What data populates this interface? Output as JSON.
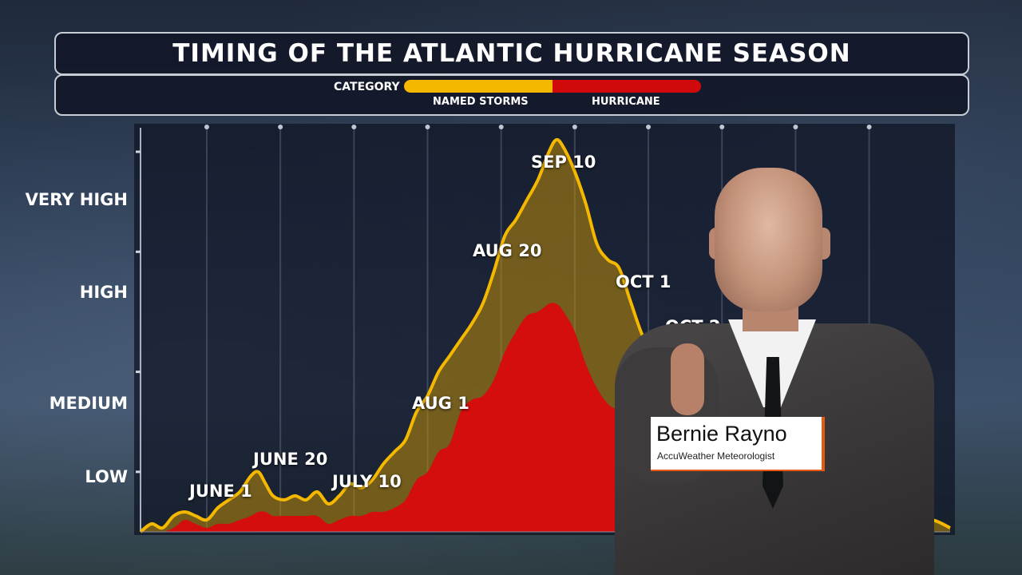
{
  "header": {
    "title": "TIMING OF THE ATLANTIC HURRICANE SEASON",
    "legend_label": "CATEGORY",
    "legend_items": [
      {
        "name": "NAMED STORMS",
        "color": "#f5b800"
      },
      {
        "name": "HURRICANE",
        "color": "#d00a0a"
      }
    ]
  },
  "chart_data": {
    "type": "area",
    "title": "TIMING OF THE ATLANTIC HURRICANE SEASON",
    "xlabel": "",
    "ylabel": "",
    "y_tick_labels": [
      "VERY HIGH",
      "HIGH",
      "MEDIUM",
      "LOW"
    ],
    "y_tick_values": [
      0.95,
      0.7,
      0.4,
      0.15
    ],
    "ylim": [
      0,
      1
    ],
    "x_unit": "day of year",
    "xlim": [
      140,
      360
    ],
    "grid": "vertical",
    "legend": "top-center",
    "annotations": [
      {
        "label": "JUNE 1",
        "x": 152
      },
      {
        "label": "JUNE 20",
        "x": 171
      },
      {
        "label": "JULY 10",
        "x": 191
      },
      {
        "label": "AUG 1",
        "x": 213
      },
      {
        "label": "AUG 20",
        "x": 232
      },
      {
        "label": "SEP 10",
        "x": 253
      },
      {
        "label": "OCT 1",
        "x": 274
      },
      {
        "label": "OCT 2",
        "x": 285
      }
    ],
    "series": [
      {
        "name": "NAMED STORMS",
        "color": "#f5b800",
        "x": [
          140,
          143,
          146,
          149,
          152,
          155,
          158,
          161,
          164,
          167,
          170,
          172,
          174,
          176,
          179,
          182,
          185,
          188,
          191,
          194,
          197,
          200,
          203,
          206,
          209,
          212,
          215,
          218,
          221,
          224,
          227,
          230,
          233,
          236,
          239,
          242,
          245,
          248,
          251,
          253,
          255,
          258,
          261,
          264,
          267,
          270,
          273,
          276,
          279,
          282,
          285,
          288,
          291,
          294,
          297,
          300,
          305,
          310,
          315,
          320,
          325,
          330,
          335,
          340,
          345,
          350,
          355,
          360
        ],
        "y": [
          0.0,
          0.02,
          0.01,
          0.04,
          0.05,
          0.04,
          0.03,
          0.06,
          0.08,
          0.1,
          0.14,
          0.15,
          0.12,
          0.09,
          0.08,
          0.09,
          0.08,
          0.1,
          0.07,
          0.09,
          0.12,
          0.11,
          0.13,
          0.17,
          0.2,
          0.23,
          0.3,
          0.34,
          0.4,
          0.44,
          0.48,
          0.52,
          0.57,
          0.65,
          0.74,
          0.78,
          0.83,
          0.88,
          0.95,
          0.98,
          0.96,
          0.9,
          0.82,
          0.72,
          0.68,
          0.66,
          0.58,
          0.5,
          0.44,
          0.38,
          0.33,
          0.28,
          0.24,
          0.2,
          0.17,
          0.15,
          0.12,
          0.1,
          0.08,
          0.06,
          0.05,
          0.04,
          0.03,
          0.02,
          0.02,
          0.02,
          0.03,
          0.01
        ]
      },
      {
        "name": "HURRICANE",
        "color": "#d00a0a",
        "x": [
          140,
          143,
          146,
          149,
          152,
          155,
          158,
          161,
          164,
          167,
          170,
          172,
          174,
          176,
          179,
          182,
          185,
          188,
          191,
          194,
          197,
          200,
          203,
          206,
          209,
          212,
          215,
          218,
          221,
          224,
          227,
          230,
          233,
          236,
          239,
          242,
          245,
          248,
          251,
          253,
          255,
          258,
          261,
          264,
          267,
          270,
          273,
          276,
          279,
          282,
          285,
          288,
          291,
          294,
          297,
          300,
          305,
          310,
          315,
          320,
          325,
          330,
          335,
          340,
          345,
          350,
          355,
          360
        ],
        "y": [
          0.0,
          0.0,
          0.0,
          0.01,
          0.03,
          0.02,
          0.01,
          0.02,
          0.02,
          0.03,
          0.04,
          0.05,
          0.05,
          0.04,
          0.04,
          0.04,
          0.04,
          0.04,
          0.02,
          0.03,
          0.04,
          0.04,
          0.05,
          0.05,
          0.06,
          0.08,
          0.13,
          0.15,
          0.2,
          0.22,
          0.3,
          0.33,
          0.34,
          0.38,
          0.45,
          0.5,
          0.54,
          0.55,
          0.57,
          0.57,
          0.55,
          0.5,
          0.42,
          0.36,
          0.32,
          0.3,
          0.26,
          0.23,
          0.19,
          0.16,
          0.13,
          0.11,
          0.09,
          0.08,
          0.07,
          0.06,
          0.05,
          0.04,
          0.03,
          0.02,
          0.02,
          0.01,
          0.01,
          0.01,
          0.0,
          0.0,
          0.0,
          0.0
        ]
      }
    ]
  },
  "presenter": {
    "name": "Bernie Rayno",
    "title": "AccuWeather Meteorologist"
  }
}
